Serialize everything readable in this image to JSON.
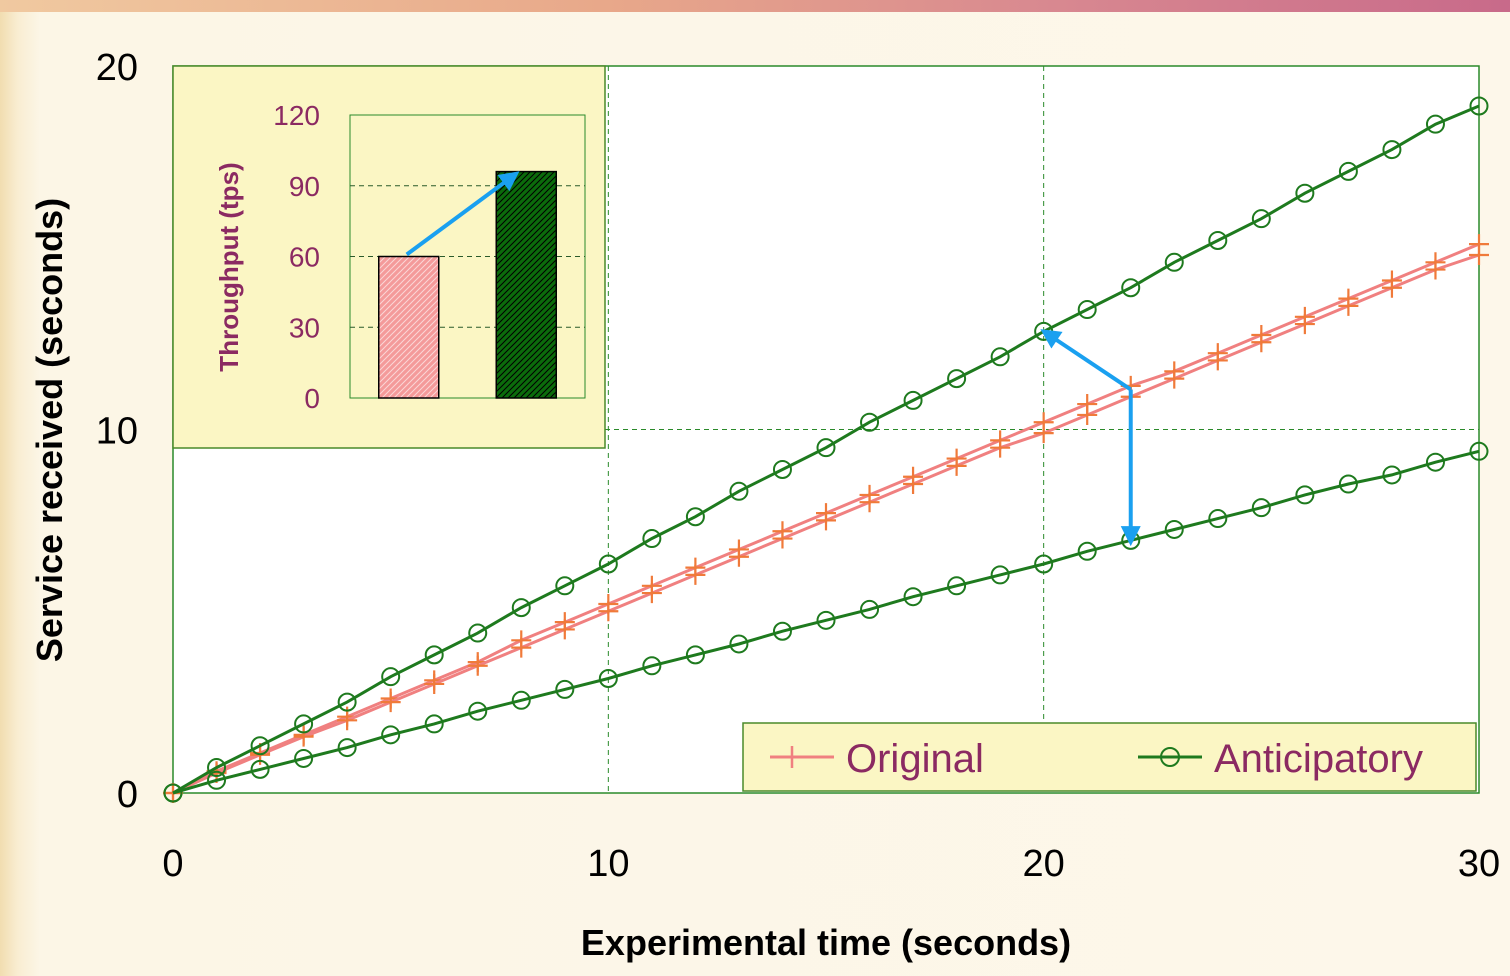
{
  "chart_data": [
    {
      "type": "line",
      "title": "",
      "xlabel": "Experimental time (seconds)",
      "ylabel": "Service received (seconds)",
      "xlim": [
        0,
        30
      ],
      "ylim": [
        0,
        20
      ],
      "xticks": [
        0,
        10,
        20,
        30
      ],
      "yticks": [
        0,
        10,
        20
      ],
      "grid": true,
      "legend_position": "bottom-right",
      "x": [
        0,
        1,
        2,
        3,
        4,
        5,
        6,
        7,
        8,
        9,
        10,
        11,
        12,
        13,
        14,
        15,
        16,
        17,
        18,
        19,
        20,
        21,
        22,
        23,
        24,
        25,
        26,
        27,
        28,
        29,
        30
      ],
      "series": [
        {
          "name": "Original",
          "color": "#f08080",
          "marker": "plus",
          "values": [
            0,
            0.6,
            1.1,
            1.6,
            2.1,
            2.6,
            3.1,
            3.6,
            4.2,
            4.7,
            5.2,
            5.7,
            6.2,
            6.7,
            7.2,
            7.7,
            8.2,
            8.7,
            9.2,
            9.7,
            10.2,
            10.7,
            11.2,
            11.6,
            12.1,
            12.6,
            13.1,
            13.6,
            14.1,
            14.6,
            15.1
          ]
        },
        {
          "name": "Original",
          "color": "#f08080",
          "marker": "plus",
          "show_in_legend": false,
          "values": [
            0,
            0.55,
            1.05,
            1.55,
            2.0,
            2.5,
            3.0,
            3.5,
            4.0,
            4.5,
            5.0,
            5.5,
            6.0,
            6.5,
            7.0,
            7.5,
            8.0,
            8.5,
            9.0,
            9.5,
            9.9,
            10.4,
            10.9,
            11.4,
            11.9,
            12.4,
            12.9,
            13.4,
            13.9,
            14.4,
            14.8
          ]
        },
        {
          "name": "Anticipatory",
          "color": "#1e7a1e",
          "marker": "circle",
          "values": [
            0,
            0.7,
            1.3,
            1.9,
            2.5,
            3.2,
            3.8,
            4.4,
            5.1,
            5.7,
            6.3,
            7.0,
            7.6,
            8.3,
            8.9,
            9.5,
            10.2,
            10.8,
            11.4,
            12.0,
            12.7,
            13.3,
            13.9,
            14.6,
            15.2,
            15.8,
            16.5,
            17.1,
            17.7,
            18.4,
            18.9
          ]
        },
        {
          "name": "Anticipatory",
          "color": "#1e7a1e",
          "marker": "circle",
          "show_in_legend": false,
          "values": [
            0,
            0.35,
            0.65,
            0.95,
            1.25,
            1.6,
            1.9,
            2.25,
            2.55,
            2.85,
            3.15,
            3.5,
            3.8,
            4.1,
            4.45,
            4.75,
            5.05,
            5.4,
            5.7,
            6.0,
            6.3,
            6.65,
            6.95,
            7.25,
            7.55,
            7.85,
            8.2,
            8.5,
            8.75,
            9.1,
            9.4
          ]
        }
      ],
      "annotations": [
        {
          "type": "arrow",
          "color": "#1aa0f0",
          "from": [
            22,
            11.1
          ],
          "to": [
            20,
            12.7
          ]
        },
        {
          "type": "arrow",
          "color": "#1aa0f0",
          "from": [
            22,
            11.1
          ],
          "to": [
            22,
            6.9
          ]
        }
      ],
      "legend": [
        {
          "label": "Original",
          "marker": "plus",
          "color": "#f08080"
        },
        {
          "label": "Anticipatory",
          "marker": "circle",
          "color": "#1e7a1e"
        }
      ]
    },
    {
      "type": "bar",
      "inset": true,
      "title": "",
      "ylabel": "Throughput (tps)",
      "categories": [
        "Original",
        "Anticipatory"
      ],
      "values": [
        60,
        96
      ],
      "colors": [
        "#f49a9a",
        "#0b6b0b"
      ],
      "ylim": [
        0,
        120
      ],
      "yticks": [
        0,
        30,
        60,
        90,
        120
      ],
      "grid": true,
      "annotations": [
        {
          "type": "arrow",
          "color": "#1aa0f0",
          "from_bar": 0,
          "to_bar": 1
        }
      ]
    }
  ]
}
